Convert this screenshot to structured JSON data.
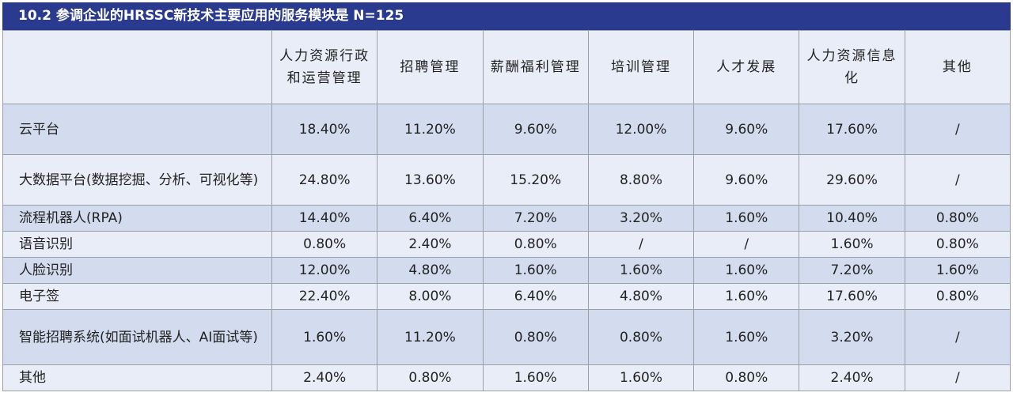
{
  "title": "10.2  参调企业的HRSSC新技术主要应用的服务模块是  N=125",
  "table": {
    "columns": [
      "",
      "人力资源行政和运营管理",
      "招聘管理",
      "薪酬福利管理",
      "培训管理",
      "人才发展",
      "人力资源信息化",
      "其他"
    ],
    "rows": [
      {
        "label": "云平台",
        "values": [
          "18.40%",
          "11.20%",
          "9.60%",
          "12.00%",
          "9.60%",
          "17.60%",
          "/"
        ]
      },
      {
        "label": "大数据平台(数据挖掘、分析、可视化等)",
        "values": [
          "24.80%",
          "13.60%",
          "15.20%",
          "8.80%",
          "9.60%",
          "29.60%",
          "/"
        ]
      },
      {
        "label": "流程机器人(RPA)",
        "values": [
          "14.40%",
          "6.40%",
          "7.20%",
          "3.20%",
          "1.60%",
          "10.40%",
          "0.80%"
        ]
      },
      {
        "label": "语音识别",
        "values": [
          "0.80%",
          "2.40%",
          "0.80%",
          "/",
          "/",
          "1.60%",
          "0.80%"
        ]
      },
      {
        "label": "人脸识别",
        "values": [
          "12.00%",
          "4.80%",
          "1.60%",
          "1.60%",
          "1.60%",
          "7.20%",
          "1.60%"
        ]
      },
      {
        "label": "电子签",
        "values": [
          "22.40%",
          "8.00%",
          "6.40%",
          "4.80%",
          "1.60%",
          "17.60%",
          "0.80%"
        ]
      },
      {
        "label": "智能招聘系统(如面试机器人、AI面试等)",
        "values": [
          "1.60%",
          "11.20%",
          "0.80%",
          "0.80%",
          "1.60%",
          "3.20%",
          "/"
        ]
      },
      {
        "label": "其他",
        "values": [
          "2.40%",
          "0.80%",
          "1.60%",
          "1.60%",
          "0.80%",
          "2.40%",
          "/"
        ]
      }
    ]
  },
  "colors": {
    "title_bg": "#2a3a8f",
    "shaded_row": "#d3dcee",
    "plain_row": "#e9edf7"
  }
}
